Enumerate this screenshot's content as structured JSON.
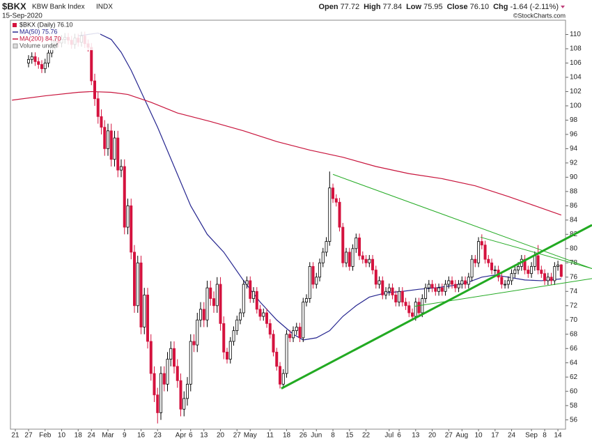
{
  "chart_data": {
    "type": "candlestick",
    "title": "$BKX",
    "subtitle": "KBW Bank Index",
    "exchange": "INDX",
    "date": "15-Sep-2020",
    "source": "©StockCharts.com",
    "quote": [
      {
        "label": "Open",
        "value": "77.72"
      },
      {
        "label": "High",
        "value": "77.84"
      },
      {
        "label": "Low",
        "value": "75.95"
      },
      {
        "label": "Close",
        "value": "76.10"
      },
      {
        "label": "Chg",
        "value": "-1.64 (-2.11%)"
      }
    ],
    "name": "$BKX (Daily) 76.10",
    "up_color": "#000000",
    "down_color": "#d4123e",
    "volume_label": "Volume undef",
    "open": [
      106.0,
      106.5,
      106.9,
      106.2,
      105.8,
      105.2,
      106.0,
      107.4,
      108.5,
      109.1,
      108.8,
      109.3,
      109.6,
      109.2,
      108.6,
      109.5,
      108.9,
      109.8,
      108.7,
      108.2,
      103.5,
      101.0,
      98.5,
      97.0,
      94.0,
      96.5,
      92.5,
      95.5,
      91.0,
      91.5,
      83.0,
      86.0,
      79.5,
      72.0,
      78.0,
      69.0,
      73.5,
      67.0,
      62.5,
      59.5,
      57.0,
      62.5,
      61.0,
      64.5,
      66.0,
      63.5,
      61.5,
      57.5,
      59.0,
      61.0,
      67.0,
      66.5,
      70.0,
      71.5,
      70.0,
      74.5,
      73.0,
      72.0,
      75.0,
      69.5,
      65.5,
      64.5,
      67.0,
      68.5,
      70.0,
      71.0,
      75.0,
      75.5,
      73.0,
      74.0,
      71.5,
      70.5,
      71.0,
      69.5,
      68.0,
      65.5,
      63.5,
      61.0,
      62.5,
      68.0,
      67.5,
      68.5,
      69.0,
      67.5,
      72.5,
      73.0,
      77.5,
      75.0,
      76.0,
      78.0,
      79.5,
      81.0,
      88.5,
      87.0,
      86.5,
      83.0,
      78.0,
      79.5,
      77.5,
      80.0,
      81.5,
      79.0,
      78.5,
      78.0,
      78.5,
      77.0,
      75.0,
      75.5,
      73.5,
      74.0,
      74.5,
      73.5,
      72.5,
      74.0,
      72.5,
      72.0,
      71.0,
      70.5,
      72.5,
      71.0,
      73.0,
      74.5,
      75.0,
      74.5,
      74.0,
      74.5,
      74.0,
      75.0,
      75.5,
      75.0,
      74.5,
      75.0,
      75.5,
      75.0,
      76.0,
      78.5,
      78.0,
      81.0,
      80.5,
      78.5,
      78.0,
      77.0,
      77.0,
      76.0,
      75.0,
      75.0,
      75.5,
      76.5,
      77.0,
      77.5,
      78.5,
      77.0,
      76.5,
      77.5,
      79.0,
      77.0,
      76.5,
      75.5,
      76.0,
      75.5,
      77.5,
      77.72
    ],
    "high": [
      107.1,
      107.5,
      107.5,
      106.8,
      106.4,
      106.6,
      108.0,
      109.1,
      109.7,
      109.7,
      109.9,
      110.2,
      110.2,
      109.8,
      110.1,
      110.1,
      110.4,
      110.4,
      109.3,
      108.8,
      104.5,
      102.0,
      99.5,
      98.0,
      97.5,
      97.5,
      96.5,
      96.5,
      92.5,
      92.5,
      87.0,
      87.0,
      80.5,
      79.0,
      79.0,
      74.5,
      74.5,
      68.0,
      63.5,
      60.5,
      63.5,
      63.5,
      65.5,
      67.0,
      67.0,
      64.5,
      62.5,
      60.0,
      62.0,
      68.0,
      68.0,
      71.0,
      72.5,
      72.5,
      75.5,
      75.5,
      74.0,
      76.0,
      76.0,
      70.5,
      66.1,
      67.6,
      69.1,
      70.6,
      71.6,
      75.6,
      76.1,
      76.1,
      74.6,
      74.6,
      72.1,
      71.6,
      71.6,
      70.1,
      68.6,
      66.1,
      64.1,
      63.1,
      68.6,
      68.6,
      69.1,
      69.6,
      69.6,
      73.1,
      73.6,
      78.1,
      78.1,
      76.6,
      78.6,
      80.1,
      81.6,
      90.8,
      89.1,
      87.6,
      87.1,
      83.6,
      80.1,
      80.1,
      80.6,
      82.1,
      82.1,
      79.6,
      79.1,
      79.1,
      79.1,
      77.6,
      76.1,
      76.1,
      74.6,
      75.1,
      75.1,
      74.1,
      74.6,
      74.6,
      73.1,
      72.6,
      71.6,
      73.1,
      73.1,
      73.6,
      75.1,
      75.6,
      75.6,
      75.1,
      75.1,
      75.1,
      75.6,
      76.1,
      76.1,
      75.6,
      75.6,
      76.1,
      76.1,
      76.6,
      79.1,
      79.1,
      81.6,
      82.0,
      81.1,
      79.1,
      78.6,
      77.6,
      77.6,
      76.6,
      75.6,
      76.1,
      77.1,
      77.6,
      78.1,
      79.1,
      79.1,
      77.6,
      78.1,
      79.6,
      80.5,
      77.6,
      77.1,
      76.6,
      76.6,
      78.1,
      78.3,
      77.84
    ],
    "low": [
      105.4,
      105.9,
      105.6,
      105.2,
      104.6,
      104.6,
      105.4,
      106.8,
      107.9,
      108.2,
      108.2,
      108.7,
      108.6,
      108.0,
      108.0,
      108.3,
      108.3,
      108.1,
      107.6,
      102.9,
      100.0,
      97.5,
      96.0,
      93.0,
      93.0,
      91.5,
      91.5,
      90.0,
      90.0,
      82.0,
      82.0,
      78.5,
      71.0,
      71.0,
      68.0,
      68.0,
      66.0,
      61.5,
      58.5,
      55.5,
      56.0,
      60.0,
      60.0,
      63.5,
      62.5,
      60.5,
      56.5,
      56.5,
      58.0,
      60.0,
      65.5,
      65.5,
      69.0,
      69.0,
      69.0,
      72.0,
      71.0,
      71.0,
      68.5,
      64.5,
      63.9,
      63.9,
      66.4,
      67.9,
      69.4,
      70.4,
      74.4,
      72.4,
      72.4,
      70.9,
      69.9,
      69.9,
      68.9,
      67.4,
      64.9,
      62.9,
      60.4,
      60.4,
      61.9,
      66.9,
      66.9,
      67.9,
      66.9,
      66.9,
      71.9,
      72.4,
      74.4,
      74.4,
      75.4,
      77.4,
      78.9,
      80.4,
      86.4,
      85.9,
      82.4,
      77.4,
      77.4,
      76.9,
      76.9,
      79.4,
      78.4,
      77.9,
      77.4,
      77.4,
      76.4,
      74.4,
      74.4,
      72.9,
      72.9,
      73.4,
      72.9,
      71.9,
      71.9,
      71.9,
      71.4,
      70.4,
      69.9,
      69.9,
      70.4,
      70.4,
      72.4,
      73.9,
      73.9,
      73.4,
      73.4,
      73.4,
      73.4,
      74.4,
      74.4,
      73.9,
      73.9,
      74.4,
      74.4,
      74.4,
      75.4,
      77.4,
      77.4,
      79.9,
      77.9,
      77.4,
      76.4,
      76.4,
      75.4,
      74.4,
      74.4,
      74.4,
      74.9,
      75.9,
      76.4,
      76.9,
      76.4,
      75.9,
      75.9,
      76.9,
      76.4,
      75.9,
      74.9,
      74.9,
      74.9,
      74.9,
      76.9,
      75.95
    ],
    "close": [
      106.5,
      106.9,
      106.2,
      105.8,
      105.2,
      106.0,
      107.4,
      108.5,
      109.1,
      108.8,
      109.3,
      109.6,
      109.2,
      108.6,
      109.5,
      108.9,
      109.8,
      108.7,
      108.2,
      103.5,
      101.0,
      98.5,
      97.0,
      94.0,
      96.5,
      92.5,
      95.5,
      91.0,
      91.5,
      83.0,
      86.0,
      79.5,
      72.0,
      78.0,
      69.0,
      73.5,
      67.0,
      62.5,
      59.5,
      57.0,
      62.5,
      61.0,
      64.5,
      66.0,
      63.5,
      61.5,
      57.5,
      59.0,
      61.0,
      67.0,
      66.5,
      70.0,
      71.5,
      70.0,
      74.5,
      73.0,
      72.0,
      75.0,
      69.5,
      65.5,
      64.5,
      67.0,
      68.5,
      70.0,
      71.0,
      75.0,
      75.5,
      73.0,
      74.0,
      71.5,
      70.5,
      71.0,
      69.5,
      68.0,
      65.5,
      63.5,
      61.0,
      62.5,
      68.0,
      67.5,
      68.5,
      69.0,
      67.5,
      72.5,
      73.0,
      77.5,
      75.0,
      76.0,
      78.0,
      79.5,
      81.0,
      88.5,
      87.0,
      86.5,
      83.0,
      78.0,
      79.5,
      77.5,
      80.0,
      81.5,
      79.0,
      78.5,
      78.0,
      78.5,
      77.0,
      75.0,
      75.5,
      73.5,
      74.0,
      74.5,
      73.5,
      72.5,
      74.0,
      72.5,
      72.0,
      71.0,
      70.5,
      72.5,
      71.0,
      73.0,
      74.5,
      75.0,
      74.5,
      74.0,
      74.5,
      74.0,
      75.0,
      75.5,
      75.0,
      74.5,
      75.0,
      75.5,
      75.0,
      76.0,
      78.5,
      78.0,
      81.0,
      80.5,
      78.5,
      78.0,
      77.0,
      77.0,
      76.0,
      75.0,
      75.0,
      75.5,
      76.5,
      77.0,
      77.5,
      78.5,
      77.0,
      76.5,
      77.5,
      79.0,
      77.0,
      76.5,
      75.5,
      76.0,
      75.5,
      77.5,
      77.7,
      76.1
    ],
    "series": [
      {
        "name": "MA(50) 75.76",
        "color": "#25258f",
        "x": [
          15,
          21,
          25,
          28,
          31,
          34,
          39,
          44,
          49,
          54,
          59,
          65,
          70,
          75,
          80,
          83,
          87,
          91,
          95,
          99,
          103,
          108,
          113,
          118,
          123,
          128,
          133,
          137,
          141,
          145,
          150,
          155,
          161
        ],
        "values": [
          109.8,
          110.2,
          109.3,
          107.5,
          105.0,
          102.0,
          97.0,
          91.5,
          86.0,
          82.0,
          79.5,
          75.5,
          72.5,
          70.0,
          68.0,
          67.2,
          67.5,
          68.5,
          70.5,
          72.0,
          73.2,
          73.8,
          74.0,
          74.3,
          74.5,
          74.8,
          75.3,
          76.0,
          76.3,
          76.0,
          75.6,
          75.5,
          75.76
        ]
      },
      {
        "name": "MA(200) 84.70",
        "color": "#c8143c",
        "x": [
          -5,
          5,
          15,
          19,
          25,
          30,
          37,
          45,
          55,
          65,
          75,
          85,
          95,
          105,
          115,
          125,
          135,
          145,
          153,
          161
        ],
        "values": [
          100.8,
          101.4,
          101.9,
          102.0,
          101.9,
          101.6,
          100.5,
          99.0,
          97.8,
          96.5,
          95.0,
          93.8,
          92.8,
          91.5,
          90.5,
          89.8,
          88.8,
          87.3,
          86.0,
          84.7
        ]
      }
    ],
    "trendlines": [
      {
        "color": "#22aa22",
        "width": 3,
        "x": [
          76.4,
          170.3
        ],
        "values": [
          60.4,
          83.3
        ]
      },
      {
        "color": "#22aa22",
        "width": 1,
        "x": [
          92,
          170.3
        ],
        "values": [
          90.4,
          77.2
        ]
      },
      {
        "color": "#22aa22",
        "width": 1,
        "x": [
          136.6,
          170.3
        ],
        "values": [
          81.6,
          77.2
        ]
      },
      {
        "color": "#22aa22",
        "width": 1,
        "x": [
          116.6,
          170.3
        ],
        "values": [
          71.9,
          75.8
        ]
      }
    ],
    "xlim": [
      -5.47,
      162.3
    ],
    "ylim": [
      54.7,
      112
    ],
    "yticks": [
      56,
      58,
      60,
      62,
      64,
      66,
      68,
      70,
      72,
      74,
      76,
      78,
      80,
      82,
      84,
      86,
      88,
      90,
      92,
      94,
      96,
      98,
      100,
      102,
      104,
      106,
      108,
      110
    ],
    "xticks": [
      {
        "value": -4,
        "label": "21"
      },
      {
        "value": 0,
        "label": "27"
      },
      {
        "value": 5,
        "label": "Feb"
      },
      {
        "value": 10,
        "label": "10"
      },
      {
        "value": 15,
        "label": "18"
      },
      {
        "value": 19,
        "label": "24"
      },
      {
        "value": 24,
        "label": "Mar"
      },
      {
        "value": 29,
        "label": "9"
      },
      {
        "value": 34,
        "label": "16"
      },
      {
        "value": 39,
        "label": "23"
      },
      {
        "value": 46,
        "label": "Apr"
      },
      {
        "value": 49,
        "label": "6"
      },
      {
        "value": 53,
        "label": "13"
      },
      {
        "value": 58,
        "label": "20"
      },
      {
        "value": 63,
        "label": "27"
      },
      {
        "value": 67,
        "label": "May"
      },
      {
        "value": 73,
        "label": "11"
      },
      {
        "value": 78,
        "label": "18"
      },
      {
        "value": 83,
        "label": "26"
      },
      {
        "value": 87,
        "label": "Jun"
      },
      {
        "value": 92,
        "label": "8"
      },
      {
        "value": 97,
        "label": "15"
      },
      {
        "value": 102,
        "label": "22"
      },
      {
        "value": 109,
        "label": "Jul"
      },
      {
        "value": 112,
        "label": "6"
      },
      {
        "value": 117,
        "label": "13"
      },
      {
        "value": 122,
        "label": "20"
      },
      {
        "value": 127,
        "label": "27"
      },
      {
        "value": 131,
        "label": "Aug"
      },
      {
        "value": 136,
        "label": "10"
      },
      {
        "value": 141,
        "label": "17"
      },
      {
        "value": 146,
        "label": "24"
      },
      {
        "value": 152,
        "label": "Sep"
      },
      {
        "value": 156,
        "label": "8"
      },
      {
        "value": 160,
        "label": "14"
      }
    ],
    "grid": false
  }
}
